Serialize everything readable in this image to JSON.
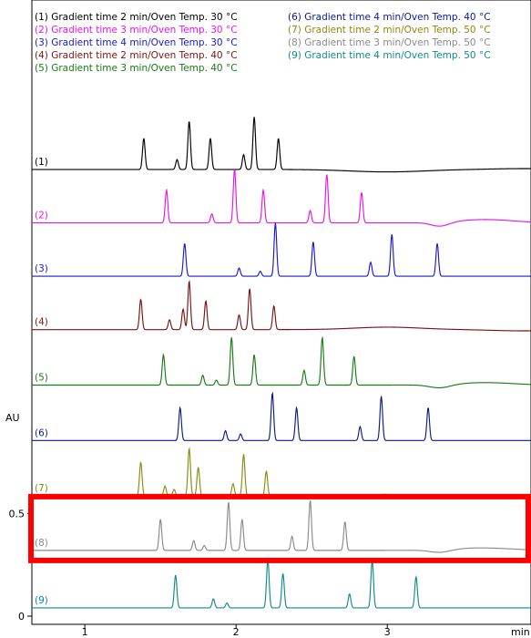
{
  "chart_data": {
    "type": "line",
    "title": "",
    "xlabel": "min",
    "ylabel": "AU",
    "x_ticks": [
      1,
      2,
      3
    ],
    "y_ticks": [
      0,
      0.5
    ],
    "xlim": [
      0.65,
      3.95
    ],
    "ylim": [
      -0.04,
      3.0
    ],
    "grid": false,
    "legend_placement": "top",
    "legend": [
      {
        "text": "(1) Gradient time 2 min/Oven Temp. 30 °C",
        "color": "#000000"
      },
      {
        "text": "(2) Gradient time 3 min/Oven Temp. 30 °C",
        "color": "#e815e8"
      },
      {
        "text": "(3) Gradient time 4 min/Oven Temp. 30 °C",
        "color": "#1a1acc"
      },
      {
        "text": "(4) Gradient time 2 min/Oven Temp. 40 °C",
        "color": "#7a1414"
      },
      {
        "text": "(5) Gradient time 3 min/Oven Temp. 40 °C",
        "color": "#1a7a1a"
      },
      {
        "text": "(6) Gradient time 4 min/Oven Temp. 40 °C",
        "color": "#0d1a8a"
      },
      {
        "text": "(7) Gradient time 2 min/Oven Temp. 50 °C",
        "color": "#8a8a14"
      },
      {
        "text": "(8) Gradient time 3 min/Oven Temp. 50 °C",
        "color": "#8a8a8a"
      },
      {
        "text": "(9) Gradient time 4 min/Oven Temp. 50 °C",
        "color": "#128a8a"
      }
    ],
    "highlight_color": "#ff0000",
    "highlighted_series": "(8)",
    "series": [
      {
        "name": "(1)",
        "color": "#000000",
        "baseline": 2.175,
        "peaks": [
          [
            1.39,
            0.152
          ],
          [
            1.61,
            0.048
          ],
          [
            1.69,
            0.236
          ],
          [
            1.83,
            0.152
          ],
          [
            2.05,
            0.072
          ],
          [
            2.12,
            0.256
          ],
          [
            2.28,
            0.152
          ]
        ],
        "drift": [
          [
            3.0,
            -0.012,
            0.25
          ],
          [
            3.9,
            0.004,
            0.2
          ]
        ]
      },
      {
        "name": "(2)",
        "color": "#e815e8",
        "baseline": 1.915,
        "peaks": [
          [
            1.54,
            0.16
          ],
          [
            1.84,
            0.044
          ],
          [
            1.99,
            0.264
          ],
          [
            2.18,
            0.16
          ],
          [
            2.49,
            0.06
          ],
          [
            2.6,
            0.236
          ],
          [
            2.83,
            0.148
          ]
        ],
        "drift": [
          [
            3.35,
            -0.02,
            0.06
          ],
          [
            3.65,
            0.016,
            0.18
          ]
        ]
      },
      {
        "name": "(3)",
        "color": "#1a1acc",
        "baseline": 1.655,
        "peaks": [
          [
            1.66,
            0.16
          ],
          [
            2.02,
            0.04
          ],
          [
            2.16,
            0.024
          ],
          [
            2.26,
            0.26
          ],
          [
            2.51,
            0.168
          ],
          [
            2.89,
            0.068
          ],
          [
            3.03,
            0.204
          ],
          [
            3.33,
            0.16
          ]
        ],
        "drift": []
      },
      {
        "name": "(4)",
        "color": "#7a1414",
        "baseline": 1.395,
        "peaks": [
          [
            1.37,
            0.148
          ],
          [
            1.56,
            0.048
          ],
          [
            1.65,
            0.1
          ],
          [
            1.69,
            0.236
          ],
          [
            1.8,
            0.14
          ],
          [
            2.02,
            0.072
          ],
          [
            2.09,
            0.2
          ],
          [
            2.25,
            0.116
          ]
        ],
        "drift": [
          [
            3.0,
            0.012,
            0.22
          ],
          [
            3.9,
            -0.006,
            0.2
          ]
        ]
      },
      {
        "name": "(5)",
        "color": "#1a7a1a",
        "baseline": 1.125,
        "peaks": [
          [
            1.52,
            0.148
          ],
          [
            1.78,
            0.048
          ],
          [
            1.87,
            0.024
          ],
          [
            1.97,
            0.232
          ],
          [
            2.12,
            0.148
          ],
          [
            2.45,
            0.072
          ],
          [
            2.57,
            0.232
          ],
          [
            2.78,
            0.14
          ]
        ],
        "drift": [
          [
            3.35,
            -0.016,
            0.07
          ],
          [
            3.65,
            0.012,
            0.18
          ]
        ]
      },
      {
        "name": "(6)",
        "color": "#0d1a8a",
        "baseline": 0.855,
        "peaks": [
          [
            1.63,
            0.16
          ],
          [
            1.93,
            0.048
          ],
          [
            2.03,
            0.032
          ],
          [
            2.24,
            0.232
          ],
          [
            2.4,
            0.16
          ],
          [
            2.82,
            0.068
          ],
          [
            2.96,
            0.216
          ],
          [
            3.27,
            0.16
          ]
        ],
        "drift": []
      },
      {
        "name": "(7)",
        "color": "#8a8a14",
        "baseline": 0.585,
        "peaks": [
          [
            1.37,
            0.164
          ],
          [
            1.53,
            0.048
          ],
          [
            1.59,
            0.032
          ],
          [
            1.69,
            0.232
          ],
          [
            1.75,
            0.14
          ],
          [
            1.98,
            0.06
          ],
          [
            2.05,
            0.204
          ],
          [
            2.2,
            0.12
          ]
        ],
        "drift": [
          [
            2.98,
            0.008,
            0.05
          ]
        ]
      },
      {
        "name": "(8)",
        "color": "#8a8a8a",
        "baseline": 0.32,
        "peaks": [
          [
            1.5,
            0.152
          ],
          [
            1.72,
            0.048
          ],
          [
            1.79,
            0.024
          ],
          [
            1.95,
            0.236
          ],
          [
            2.04,
            0.152
          ],
          [
            2.37,
            0.068
          ],
          [
            2.49,
            0.244
          ],
          [
            2.72,
            0.14
          ]
        ],
        "drift": [
          [
            3.35,
            -0.014,
            0.07
          ],
          [
            3.62,
            0.012,
            0.2
          ]
        ]
      },
      {
        "name": "(9)",
        "color": "#128a8a",
        "baseline": 0.04,
        "peaks": [
          [
            1.6,
            0.16
          ],
          [
            1.85,
            0.044
          ],
          [
            1.94,
            0.024
          ],
          [
            2.21,
            0.236
          ],
          [
            2.31,
            0.168
          ],
          [
            2.75,
            0.068
          ],
          [
            2.9,
            0.232
          ],
          [
            3.19,
            0.152
          ]
        ],
        "drift": []
      }
    ]
  }
}
